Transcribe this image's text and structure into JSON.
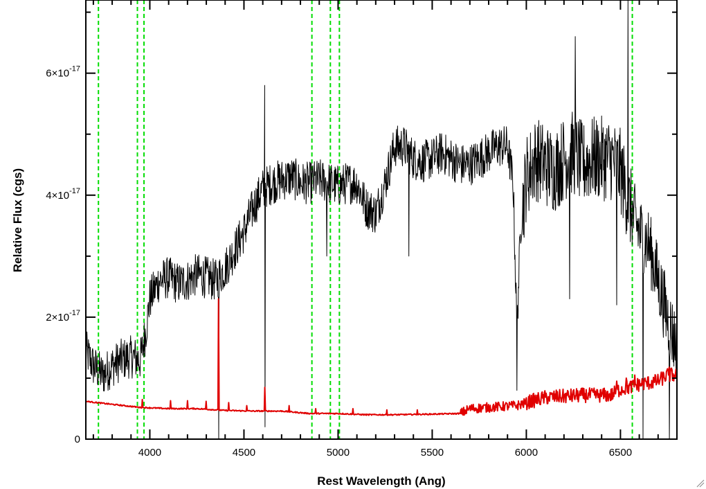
{
  "chart_data": {
    "type": "line",
    "title": "",
    "xlabel": "Rest Wavelength (Ang)",
    "ylabel": "Relative Flux (cgs)",
    "xlim": [
      3660,
      6800
    ],
    "ylim": [
      0,
      7.2e-17
    ],
    "x_ticks": [
      {
        "value": 4000,
        "label": "4000"
      },
      {
        "value": 4500,
        "label": "4500"
      },
      {
        "value": 5000,
        "label": "5000"
      },
      {
        "value": 5500,
        "label": "5500"
      },
      {
        "value": 6000,
        "label": "6000"
      },
      {
        "value": 6500,
        "label": "6500"
      }
    ],
    "x_minor_step": 100,
    "y_ticks": [
      {
        "value": 0,
        "mantissa": "0",
        "exponent": ""
      },
      {
        "value": 2e-17,
        "mantissa": "2×10",
        "exponent": "-17"
      },
      {
        "value": 4e-17,
        "mantissa": "4×10",
        "exponent": "-17"
      },
      {
        "value": 6e-17,
        "mantissa": "6×10",
        "exponent": "-17"
      }
    ],
    "y_minor_step": 1e-17,
    "grid": false,
    "legend": "none",
    "series": [
      {
        "color": "#000000",
        "points": [
          [
            3660,
            1.45e-17
          ],
          [
            3700,
            1.2e-17
          ],
          [
            3750,
            1.05e-17
          ],
          [
            3800,
            1.2e-17
          ],
          [
            3850,
            1.3e-17
          ],
          [
            3900,
            1.35e-17
          ],
          [
            3950,
            1.3e-17
          ],
          [
            3980,
            1.8e-17
          ],
          [
            4000,
            2.3e-17
          ],
          [
            4050,
            2.6e-17
          ],
          [
            4100,
            2.65e-17
          ],
          [
            4150,
            2.55e-17
          ],
          [
            4200,
            2.6e-17
          ],
          [
            4250,
            2.7e-17
          ],
          [
            4300,
            2.65e-17
          ],
          [
            4350,
            2.6e-17
          ],
          [
            4400,
            2.8e-17
          ],
          [
            4450,
            3.1e-17
          ],
          [
            4500,
            3.4e-17
          ],
          [
            4550,
            3.8e-17
          ],
          [
            4600,
            4.1e-17
          ],
          [
            4650,
            4.2e-17
          ],
          [
            4700,
            4.25e-17
          ],
          [
            4750,
            4.3e-17
          ],
          [
            4800,
            4.2e-17
          ],
          [
            4850,
            4.2e-17
          ],
          [
            4900,
            4.25e-17
          ],
          [
            4950,
            4.2e-17
          ],
          [
            5000,
            4.15e-17
          ],
          [
            5050,
            4.2e-17
          ],
          [
            5100,
            4.2e-17
          ],
          [
            5150,
            3.8e-17
          ],
          [
            5200,
            3.7e-17
          ],
          [
            5250,
            4.2e-17
          ],
          [
            5300,
            4.8e-17
          ],
          [
            5350,
            4.8e-17
          ],
          [
            5400,
            4.6e-17
          ],
          [
            5450,
            4.55e-17
          ],
          [
            5500,
            4.6e-17
          ],
          [
            5550,
            4.7e-17
          ],
          [
            5600,
            4.6e-17
          ],
          [
            5650,
            4.5e-17
          ],
          [
            5700,
            4.5e-17
          ],
          [
            5750,
            4.6e-17
          ],
          [
            5800,
            4.7e-17
          ],
          [
            5850,
            4.8e-17
          ],
          [
            5900,
            4.8e-17
          ],
          [
            5930,
            4.2e-17
          ],
          [
            5950,
            1.8e-17
          ],
          [
            5970,
            3.5e-17
          ],
          [
            6000,
            4.3e-17
          ],
          [
            6050,
            4.6e-17
          ],
          [
            6100,
            4.5e-17
          ],
          [
            6150,
            4.4e-17
          ],
          [
            6200,
            4.6e-17
          ],
          [
            6250,
            4.7e-17
          ],
          [
            6300,
            4.5e-17
          ],
          [
            6350,
            4.6e-17
          ],
          [
            6400,
            4.6e-17
          ],
          [
            6450,
            4.6e-17
          ],
          [
            6500,
            4.4e-17
          ],
          [
            6550,
            3.8e-17
          ],
          [
            6600,
            3.4e-17
          ],
          [
            6650,
            3.2e-17
          ],
          [
            6700,
            2.6e-17
          ],
          [
            6750,
            2e-17
          ],
          [
            6800,
            1.5e-17
          ]
        ],
        "spikes": [
          [
            4365,
            7.2e-17
          ],
          [
            4365,
            0
          ],
          [
            4610,
            5.8e-17
          ],
          [
            4612,
            2e-18
          ],
          [
            4940,
            3e-17
          ],
          [
            5375,
            3e-17
          ],
          [
            5950,
            8e-18
          ],
          [
            6260,
            6.6e-17
          ],
          [
            6230,
            2.3e-17
          ],
          [
            6480,
            2.2e-17
          ],
          [
            6540,
            7.2e-17
          ],
          [
            6620,
            0
          ],
          [
            6760,
            0
          ]
        ]
      },
      {
        "color": "#e00000",
        "points": [
          [
            3660,
            6.2e-18
          ],
          [
            3800,
            5.7e-18
          ],
          [
            3950,
            5.2e-18
          ],
          [
            4100,
            5e-18
          ],
          [
            4250,
            5e-18
          ],
          [
            4400,
            4.7e-18
          ],
          [
            4550,
            4.6e-18
          ],
          [
            4700,
            4.6e-18
          ],
          [
            4850,
            4.2e-18
          ],
          [
            5000,
            4.2e-18
          ],
          [
            5150,
            4e-18
          ],
          [
            5300,
            4e-18
          ],
          [
            5500,
            4.1e-18
          ],
          [
            5650,
            4.2e-18
          ],
          [
            5700,
            5e-18
          ],
          [
            5800,
            5.2e-18
          ],
          [
            5950,
            5.5e-18
          ],
          [
            6000,
            6e-18
          ],
          [
            6100,
            6.8e-18
          ],
          [
            6200,
            7e-18
          ],
          [
            6300,
            7.2e-18
          ],
          [
            6450,
            7.2e-18
          ],
          [
            6500,
            8.2e-18
          ],
          [
            6550,
            8.5e-18
          ],
          [
            6600,
            9e-18
          ],
          [
            6700,
            9.5e-18
          ],
          [
            6750,
            1.05e-17
          ],
          [
            6800,
            1.05e-17
          ]
        ],
        "spikes": [
          [
            4365,
            2.3e-17
          ],
          [
            3960,
            6.5e-18
          ],
          [
            4110,
            6.3e-18
          ],
          [
            4200,
            6.3e-18
          ],
          [
            4300,
            6.2e-18
          ],
          [
            4420,
            6e-18
          ],
          [
            4515,
            5.5e-18
          ],
          [
            4610,
            8.5e-18
          ],
          [
            4740,
            5.5e-18
          ],
          [
            4880,
            5e-18
          ],
          [
            5080,
            5e-18
          ],
          [
            5260,
            4.8e-18
          ],
          [
            5420,
            4.8e-18
          ],
          [
            6480,
            9.5e-18
          ],
          [
            6530,
            1e-17
          ],
          [
            6575,
            1.05e-17
          ],
          [
            6760,
            1.18e-17
          ]
        ]
      }
    ],
    "reference_lines": {
      "color": "#00dd00",
      "x": [
        3727,
        3934,
        3969,
        4861,
        4959,
        5007,
        6563
      ]
    }
  },
  "window": {
    "resize_grip": "resize-grip-icon"
  }
}
